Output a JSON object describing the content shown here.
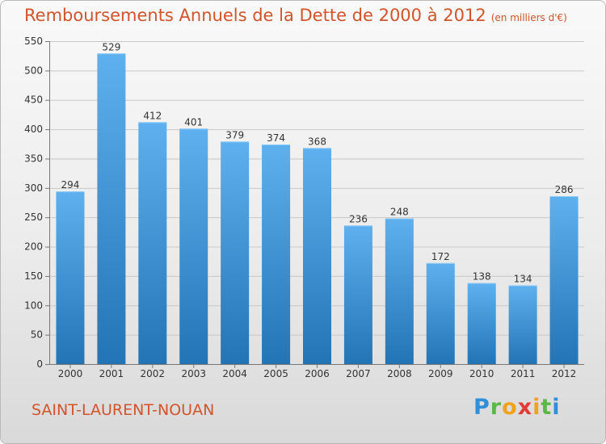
{
  "header": {
    "title": "Remboursements Annuels de la Dette de 2000 à 2012",
    "unit": "(en milliers d'€)"
  },
  "footer": {
    "commune": "SAINT-LAURENT-NOUAN",
    "brand": "Proxiti"
  },
  "brand_letters": [
    {
      "ch": "P",
      "color": "#2f8fd8"
    },
    {
      "ch": "r",
      "color": "#58b947"
    },
    {
      "ch": "o",
      "color": "#f0a21d"
    },
    {
      "ch": "x",
      "color": "#e23b37"
    },
    {
      "ch": "i",
      "color": "#f0a21d"
    },
    {
      "ch": "t",
      "color": "#58b947"
    },
    {
      "ch": "i",
      "color": "#2f8fd8"
    }
  ],
  "colors": {
    "bar_top": "#5eb0ee",
    "bar_bottom": "#2274b5",
    "title": "#d2542a",
    "grid": "#c8c8c8"
  },
  "chart_data": {
    "type": "bar",
    "title": "Remboursements Annuels de la Dette de 2000 à 2012",
    "unit": "(en milliers d'€)",
    "categories": [
      "2000",
      "2001",
      "2002",
      "2003",
      "2004",
      "2005",
      "2006",
      "2007",
      "2008",
      "2009",
      "2010",
      "2011",
      "2012"
    ],
    "values": [
      294,
      529,
      412,
      401,
      379,
      374,
      368,
      236,
      248,
      172,
      138,
      134,
      286
    ],
    "ylim": [
      0,
      550
    ],
    "yticks": [
      0,
      50,
      100,
      150,
      200,
      250,
      300,
      350,
      400,
      450,
      500,
      550
    ],
    "grid": true
  }
}
